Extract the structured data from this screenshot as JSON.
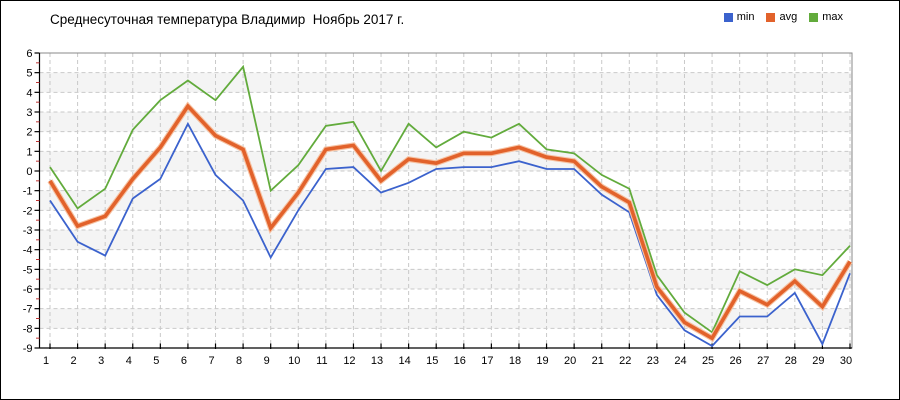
{
  "chart_data": {
    "type": "line",
    "title": "Среднесуточная температура Владимир  Ноябрь 2017 г.",
    "xlabel": "",
    "ylabel": "",
    "x": [
      1,
      2,
      3,
      4,
      5,
      6,
      7,
      8,
      9,
      10,
      11,
      12,
      13,
      14,
      15,
      16,
      17,
      18,
      19,
      20,
      21,
      22,
      23,
      24,
      25,
      26,
      27,
      28,
      29,
      30
    ],
    "xticks": [
      "1",
      "2",
      "3",
      "4",
      "5",
      "6",
      "7",
      "8",
      "9",
      "10",
      "11",
      "12",
      "13",
      "14",
      "15",
      "16",
      "17",
      "18",
      "19",
      "20",
      "21",
      "22",
      "23",
      "24",
      "25",
      "26",
      "27",
      "28",
      "29",
      "30"
    ],
    "ylim": [
      -9,
      6
    ],
    "yticks": [
      "6",
      "5",
      "4",
      "3",
      "2",
      "1",
      "0",
      "-1",
      "-2",
      "-3",
      "-4",
      "-5",
      "-6",
      "-7",
      "-8",
      "-9"
    ],
    "grid": true,
    "legend_position": "top-right",
    "series": [
      {
        "name": "min",
        "color": "#3b62cd",
        "width": 1.8,
        "values": [
          -1.5,
          -3.6,
          -4.3,
          -1.4,
          -0.4,
          2.4,
          -0.2,
          -1.5,
          -4.4,
          -2.0,
          0.1,
          0.2,
          -1.1,
          -0.6,
          0.1,
          0.2,
          0.2,
          0.5,
          0.1,
          0.1,
          -1.2,
          -2.1,
          -6.3,
          -8.1,
          -8.9,
          -7.4,
          -7.4,
          -6.2,
          -8.8,
          -5.2
        ]
      },
      {
        "name": "avg",
        "color": "#e2622b",
        "width": 3.6,
        "values": [
          -0.5,
          -2.8,
          -2.3,
          -0.4,
          1.2,
          3.3,
          1.8,
          1.1,
          -2.9,
          -1.1,
          1.1,
          1.3,
          -0.5,
          0.6,
          0.4,
          0.9,
          0.9,
          1.2,
          0.7,
          0.5,
          -0.8,
          -1.6,
          -5.9,
          -7.7,
          -8.5,
          -6.1,
          -6.8,
          -5.6,
          -6.9,
          -4.6
        ]
      },
      {
        "name": "max",
        "color": "#62ab3c",
        "width": 1.8,
        "values": [
          0.2,
          -1.9,
          -0.9,
          2.1,
          3.6,
          4.6,
          3.6,
          5.3,
          -1.0,
          0.3,
          2.3,
          2.5,
          0.0,
          2.4,
          1.2,
          2.0,
          1.7,
          2.4,
          1.1,
          0.9,
          -0.2,
          -0.9,
          -5.3,
          -7.2,
          -8.2,
          -5.1,
          -5.8,
          -5.0,
          -5.3,
          -3.8
        ]
      }
    ],
    "colors": {
      "band": "#f4f4f4",
      "grid": "#c9c9c9",
      "axis": "#000000",
      "plot_border": "#888888",
      "minor_tick": "#c03333",
      "avg_halo": "#f6c2a2"
    }
  }
}
